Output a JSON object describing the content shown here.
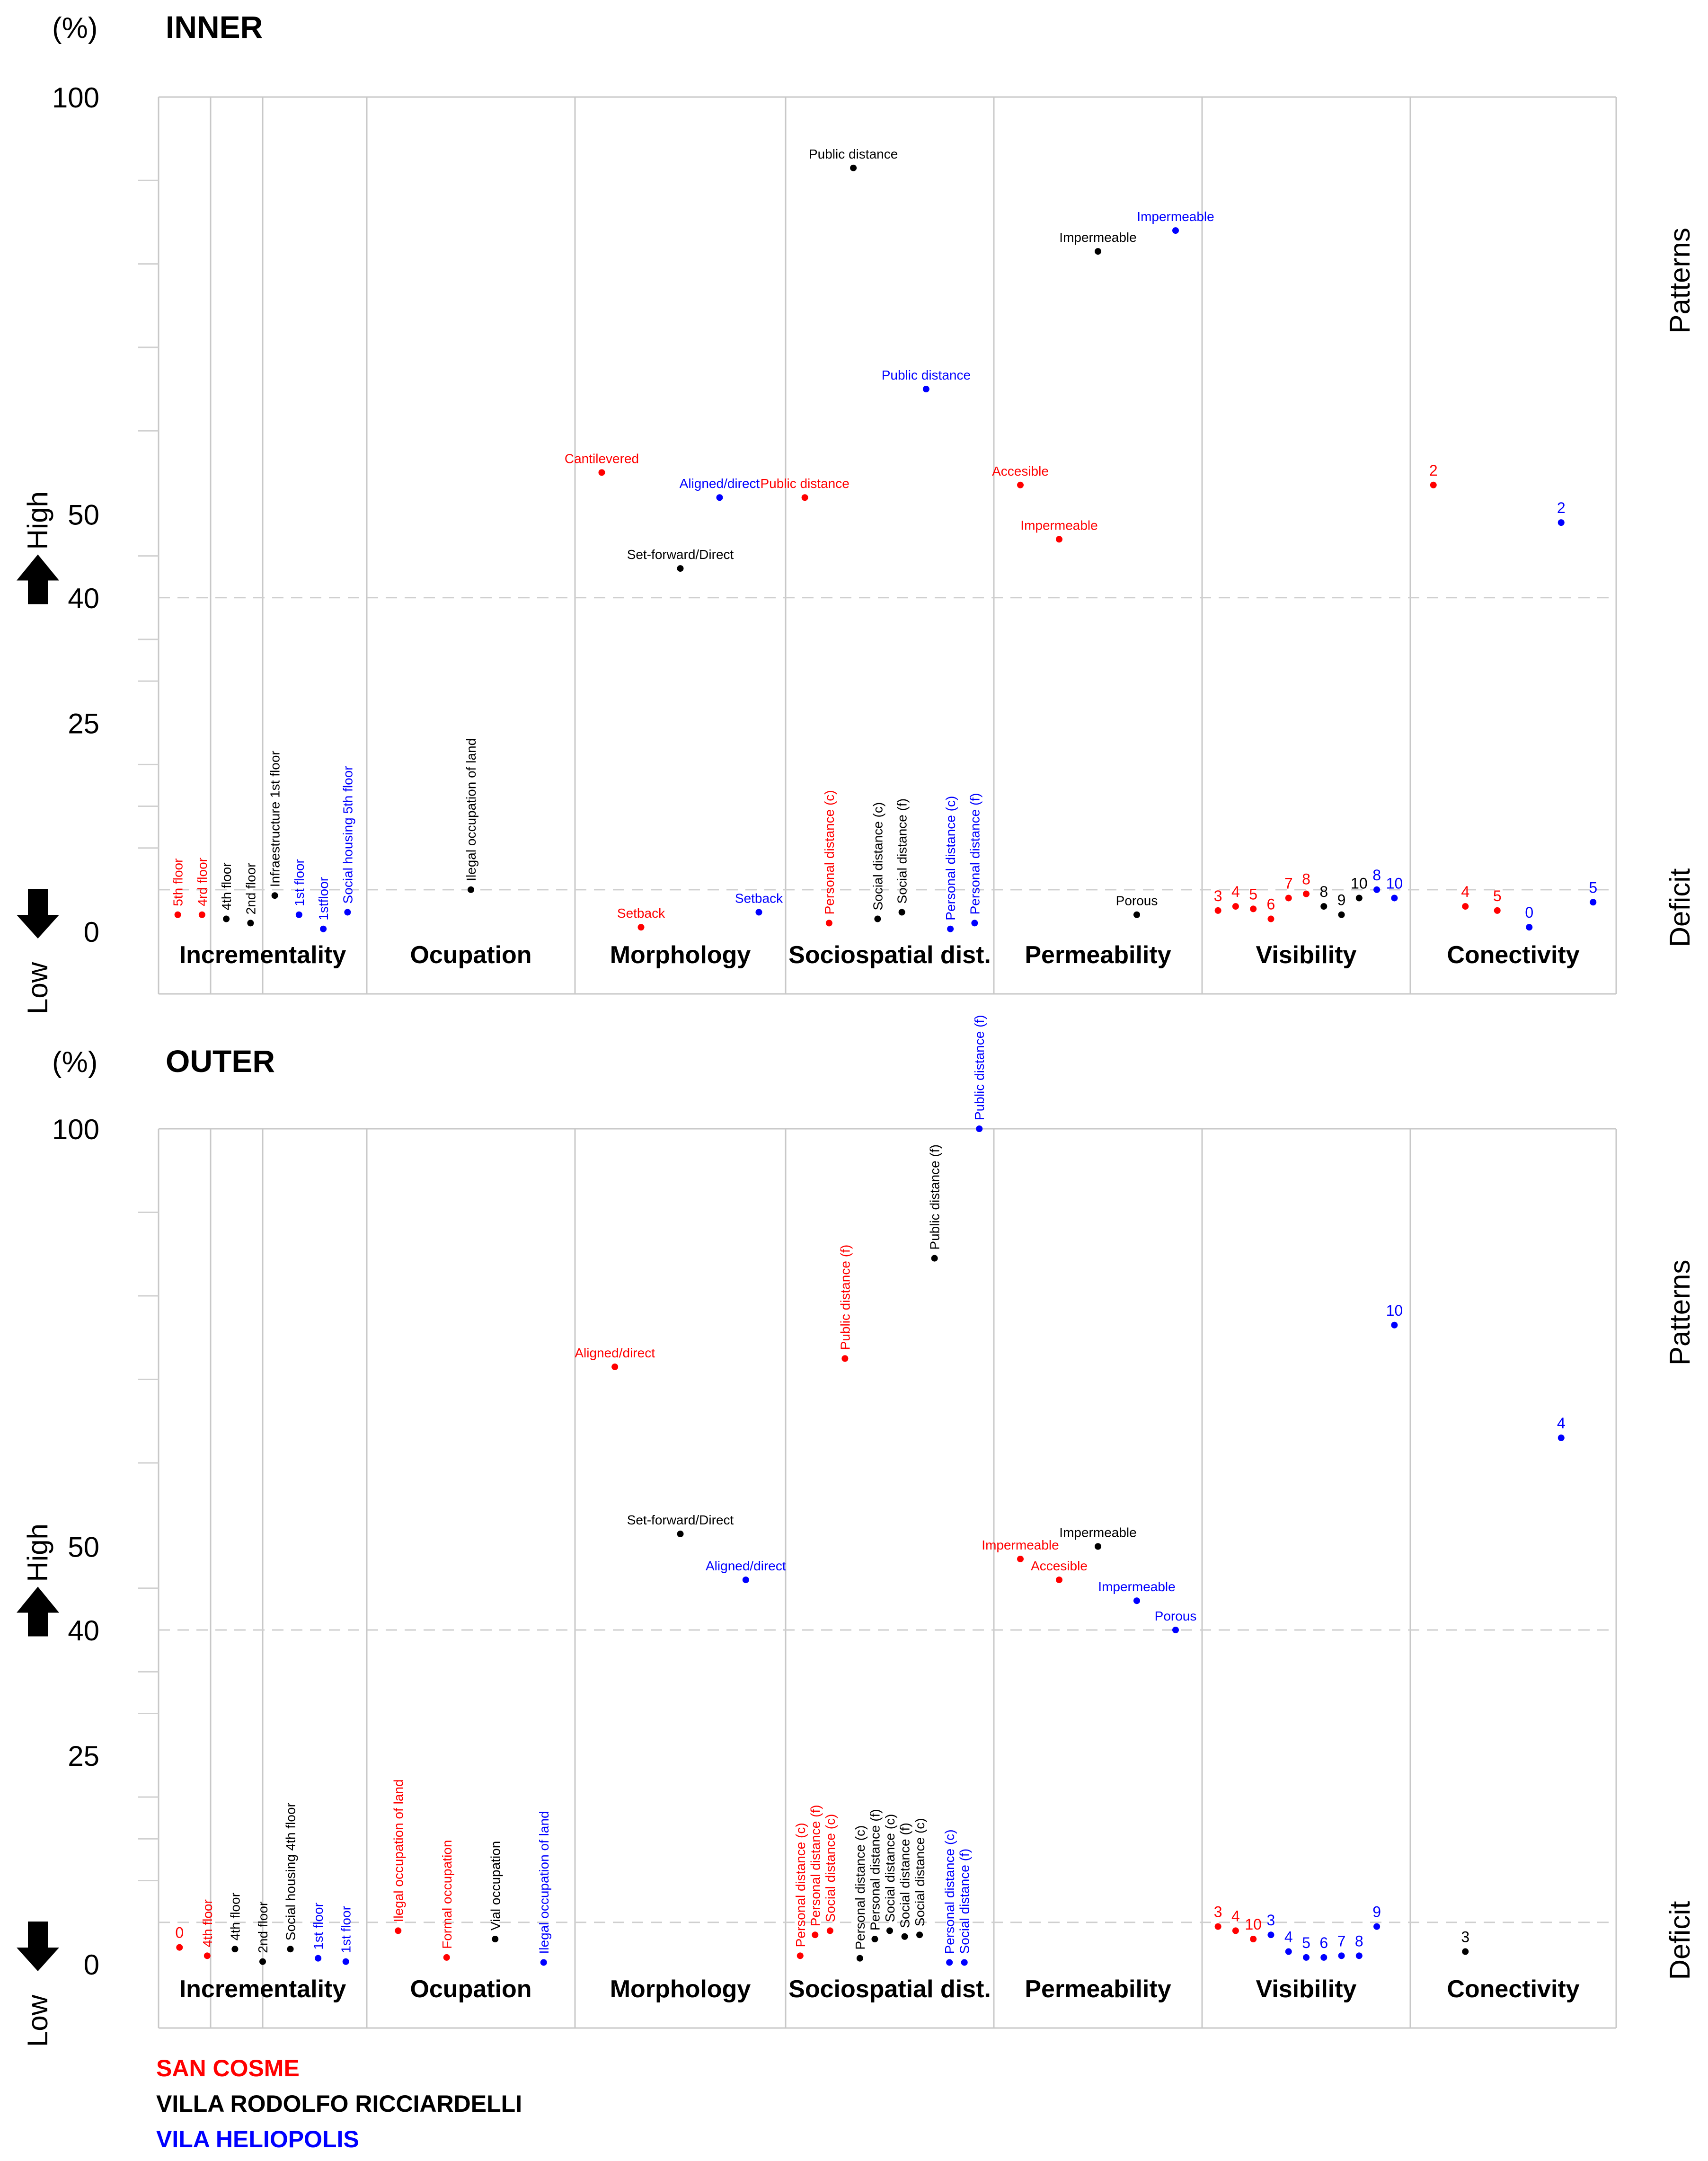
{
  "colors": {
    "san_cosme": "#ff0000",
    "villa_rodolfo": "#000000",
    "vila_heliopolis": "#0000ff",
    "grid": "#c8c8c8",
    "dashed": "#cfcfcf"
  },
  "common": {
    "unit_label": "(%)",
    "high_label": "High",
    "low_label": "Low",
    "patterns_label": "Patterns",
    "deficit_label": "Deficit",
    "up_arrow_icon": "arrow-up-icon",
    "down_arrow_icon": "arrow-down-icon"
  },
  "legend": [
    {
      "label": "SAN COSME",
      "color": "#ff0000"
    },
    {
      "label": "VILLA RODOLFO RICCIARDELLI",
      "color": "#000000"
    },
    {
      "label": "VILA HELIOPOLIS",
      "color": "#0000ff"
    }
  ],
  "chart_data": [
    {
      "type": "scatter",
      "title": "INNER",
      "ylabel": "(%)",
      "ylim": [
        0,
        100
      ],
      "y_tick_labels": [
        "0",
        "25",
        "40",
        "50",
        "100"
      ],
      "grid": true,
      "categories": [
        "Incrementality",
        "Ocupation",
        "Morphology",
        "Sociospatial dist.",
        "Permeability",
        "Visibility",
        "Conectivity"
      ],
      "series": [
        {
          "name": "SAN COSME",
          "color": "#ff0000",
          "points": [
            {
              "category": "Incrementality",
              "label": "5th floor",
              "y": 2.0,
              "rotated": true
            },
            {
              "category": "Incrementality",
              "label": "4rd floor",
              "y": 2.0,
              "rotated": true
            },
            {
              "category": "Morphology",
              "label": "Cantilevered",
              "y": 55,
              "rotated": false
            },
            {
              "category": "Morphology",
              "label": "Setback",
              "y": 0.5,
              "rotated": false
            },
            {
              "category": "Sociospatial dist.",
              "label": "Public distance",
              "y": 52,
              "rotated": false
            },
            {
              "category": "Sociospatial dist.",
              "label": "Personal distance (c)",
              "y": 1.0,
              "rotated": true
            },
            {
              "category": "Permeability",
              "label": "Accesible",
              "y": 53.5,
              "rotated": false
            },
            {
              "category": "Permeability",
              "label": "Impermeable",
              "y": 47,
              "rotated": false
            },
            {
              "category": "Visibility",
              "label": "3",
              "y": 2.5,
              "rotated": false
            },
            {
              "category": "Visibility",
              "label": "4",
              "y": 3.0,
              "rotated": false
            },
            {
              "category": "Visibility",
              "label": "5",
              "y": 2.7,
              "rotated": false
            },
            {
              "category": "Visibility",
              "label": "6",
              "y": 1.5,
              "rotated": false
            },
            {
              "category": "Visibility",
              "label": "7",
              "y": 4.0,
              "rotated": false
            },
            {
              "category": "Visibility",
              "label": "8",
              "y": 4.5,
              "rotated": false
            },
            {
              "category": "Conectivity",
              "label": "2",
              "y": 53.5,
              "rotated": false
            },
            {
              "category": "Conectivity",
              "label": "4",
              "y": 3.0,
              "rotated": false
            },
            {
              "category": "Conectivity",
              "label": "5",
              "y": 2.5,
              "rotated": false
            }
          ]
        },
        {
          "name": "VILLA RODOLFO RICCIARDELLI",
          "color": "#000000",
          "points": [
            {
              "category": "Incrementality",
              "label": "4th floor",
              "y": 1.5,
              "rotated": true
            },
            {
              "category": "Incrementality",
              "label": "2nd floor",
              "y": 1.0,
              "rotated": true
            },
            {
              "category": "Incrementality",
              "label": "Infraestructure 1st floor",
              "y": 4.3,
              "rotated": true
            },
            {
              "category": "Ocupation",
              "label": "Ilegal occupation of land",
              "y": 5.0,
              "rotated": true
            },
            {
              "category": "Morphology",
              "label": "Set-forward/Direct",
              "y": 43.5,
              "rotated": false
            },
            {
              "category": "Sociospatial dist.",
              "label": "Public distance",
              "y": 91.5,
              "rotated": false
            },
            {
              "category": "Sociospatial dist.",
              "label": "Social distance (c)",
              "y": 1.5,
              "rotated": true
            },
            {
              "category": "Sociospatial dist.",
              "label": "Social distance (f)",
              "y": 2.3,
              "rotated": true
            },
            {
              "category": "Permeability",
              "label": "Impermeable",
              "y": 81.5,
              "rotated": false
            },
            {
              "category": "Permeability",
              "label": "Porous",
              "y": 2.0,
              "rotated": false
            },
            {
              "category": "Visibility",
              "label": "8",
              "y": 3.0,
              "rotated": false
            },
            {
              "category": "Visibility",
              "label": "9",
              "y": 2.0,
              "rotated": false
            },
            {
              "category": "Visibility",
              "label": "10",
              "y": 4.0,
              "rotated": false
            }
          ]
        },
        {
          "name": "VILA HELIOPOLIS",
          "color": "#0000ff",
          "points": [
            {
              "category": "Incrementality",
              "label": "1st floor",
              "y": 2.0,
              "rotated": true
            },
            {
              "category": "Incrementality",
              "label": "1stfloor",
              "y": 0.3,
              "rotated": true
            },
            {
              "category": "Incrementality",
              "label": "Social housing 5th floor",
              "y": 2.3,
              "rotated": true
            },
            {
              "category": "Morphology",
              "label": "Aligned/direct",
              "y": 52,
              "rotated": false
            },
            {
              "category": "Morphology",
              "label": "Setback",
              "y": 2.3,
              "rotated": false
            },
            {
              "category": "Sociospatial dist.",
              "label": "Public distance",
              "y": 65,
              "rotated": false
            },
            {
              "category": "Sociospatial dist.",
              "label": "Personal distance (c)",
              "y": 0.3,
              "rotated": true
            },
            {
              "category": "Sociospatial dist.",
              "label": "Personal distance (f)",
              "y": 1.0,
              "rotated": true
            },
            {
              "category": "Permeability",
              "label": "Impermeable",
              "y": 84,
              "rotated": false
            },
            {
              "category": "Visibility",
              "label": "8",
              "y": 5.0,
              "rotated": false
            },
            {
              "category": "Visibility",
              "label": "10",
              "y": 4.0,
              "rotated": false
            },
            {
              "category": "Conectivity",
              "label": "0",
              "y": 0.5,
              "rotated": false
            },
            {
              "category": "Conectivity",
              "label": "2",
              "y": 49,
              "rotated": false
            },
            {
              "category": "Conectivity",
              "label": "5",
              "y": 3.5,
              "rotated": false
            }
          ]
        }
      ]
    },
    {
      "type": "scatter",
      "title": "OUTER",
      "ylabel": "(%)",
      "ylim": [
        0,
        100
      ],
      "y_tick_labels": [
        "0",
        "25",
        "40",
        "50",
        "100"
      ],
      "grid": true,
      "categories": [
        "Incrementality",
        "Ocupation",
        "Morphology",
        "Sociospatial dist.",
        "Permeability",
        "Visibility",
        "Conectivity"
      ],
      "series": [
        {
          "name": "SAN COSME",
          "color": "#ff0000",
          "points": [
            {
              "category": "Incrementality",
              "label": "0",
              "y": 2.0,
              "rotated": false
            },
            {
              "category": "Incrementality",
              "label": "4th floor",
              "y": 1.0,
              "rotated": true
            },
            {
              "category": "Ocupation",
              "label": "Ilegal occupation of land",
              "y": 4.0,
              "rotated": true
            },
            {
              "category": "Ocupation",
              "label": "Formal occupation",
              "y": 0.8,
              "rotated": true
            },
            {
              "category": "Morphology",
              "label": "Aligned/direct",
              "y": 71.5,
              "rotated": false
            },
            {
              "category": "Sociospatial dist.",
              "label": "Personal distance (c)",
              "y": 1.0,
              "rotated": true
            },
            {
              "category": "Sociospatial dist.",
              "label": "Personal distance (f)",
              "y": 3.5,
              "rotated": true
            },
            {
              "category": "Sociospatial dist.",
              "label": "Social distance (c)",
              "y": 4.0,
              "rotated": true
            },
            {
              "category": "Sociospatial dist.",
              "label": "Public distance (f)",
              "y": 72.5,
              "rotated": true
            },
            {
              "category": "Permeability",
              "label": "Impermeable",
              "y": 48.5,
              "rotated": false
            },
            {
              "category": "Permeability",
              "label": "Accesible",
              "y": 46,
              "rotated": false
            },
            {
              "category": "Visibility",
              "label": "3",
              "y": 4.5,
              "rotated": false
            },
            {
              "category": "Visibility",
              "label": "4",
              "y": 4.0,
              "rotated": false
            },
            {
              "category": "Visibility",
              "label": "10",
              "y": 3.0,
              "rotated": false
            }
          ]
        },
        {
          "name": "VILLA RODOLFO RICCIARDELLI",
          "color": "#000000",
          "points": [
            {
              "category": "Incrementality",
              "label": "4th floor",
              "y": 1.8,
              "rotated": true
            },
            {
              "category": "Incrementality",
              "label": "2nd floor",
              "y": 0.3,
              "rotated": true
            },
            {
              "category": "Incrementality",
              "label": "Social housing 4th floor",
              "y": 1.8,
              "rotated": true
            },
            {
              "category": "Ocupation",
              "label": "Vial occupation",
              "y": 3.0,
              "rotated": true
            },
            {
              "category": "Morphology",
              "label": "Set-forward/Direct",
              "y": 51.5,
              "rotated": false
            },
            {
              "category": "Sociospatial dist.",
              "label": "Personal distance (c)",
              "y": 0.7,
              "rotated": true
            },
            {
              "category": "Sociospatial dist.",
              "label": "Personal distance (f)",
              "y": 3.0,
              "rotated": true
            },
            {
              "category": "Sociospatial dist.",
              "label": "Social distance (c)",
              "y": 4.0,
              "rotated": true
            },
            {
              "category": "Sociospatial dist.",
              "label": "Social distance (f)",
              "y": 3.3,
              "rotated": true
            },
            {
              "category": "Sociospatial dist.",
              "label": "Social distance (c)",
              "y": 3.5,
              "rotated": true
            },
            {
              "category": "Sociospatial dist.",
              "label": "Public distance (f)",
              "y": 84.5,
              "rotated": true
            },
            {
              "category": "Permeability",
              "label": "Impermeable",
              "y": 50,
              "rotated": false
            },
            {
              "category": "Conectivity",
              "label": "3",
              "y": 1.5,
              "rotated": false
            }
          ]
        },
        {
          "name": "VILA HELIOPOLIS",
          "color": "#0000ff",
          "points": [
            {
              "category": "Incrementality",
              "label": "1st floor",
              "y": 0.7,
              "rotated": true
            },
            {
              "category": "Incrementality",
              "label": "1st floor",
              "y": 0.3,
              "rotated": true
            },
            {
              "category": "Ocupation",
              "label": "Ilegal occupation of land",
              "y": 0.2,
              "rotated": true
            },
            {
              "category": "Morphology",
              "label": "Aligned/direct",
              "y": 46,
              "rotated": false
            },
            {
              "category": "Sociospatial dist.",
              "label": "Personal distance (c)",
              "y": 0.2,
              "rotated": true
            },
            {
              "category": "Sociospatial dist.",
              "label": "Social distance (f)",
              "y": 0.2,
              "rotated": true
            },
            {
              "category": "Sociospatial dist.",
              "label": "Public distance (f)",
              "y": 100,
              "rotated": true
            },
            {
              "category": "Permeability",
              "label": "Impermeable",
              "y": 43.5,
              "rotated": false
            },
            {
              "category": "Permeability",
              "label": "Porous",
              "y": 40,
              "rotated": false
            },
            {
              "category": "Visibility",
              "label": "3",
              "y": 3.5,
              "rotated": false
            },
            {
              "category": "Visibility",
              "label": "4",
              "y": 1.5,
              "rotated": false
            },
            {
              "category": "Visibility",
              "label": "5",
              "y": 0.8,
              "rotated": false
            },
            {
              "category": "Visibility",
              "label": "6",
              "y": 0.8,
              "rotated": false
            },
            {
              "category": "Visibility",
              "label": "7",
              "y": 1.0,
              "rotated": false
            },
            {
              "category": "Visibility",
              "label": "8",
              "y": 1.0,
              "rotated": false
            },
            {
              "category": "Visibility",
              "label": "9",
              "y": 4.5,
              "rotated": false
            },
            {
              "category": "Visibility",
              "label": "10",
              "y": 76.5,
              "rotated": false
            },
            {
              "category": "Conectivity",
              "label": "4",
              "y": 63,
              "rotated": false
            }
          ]
        }
      ]
    }
  ]
}
